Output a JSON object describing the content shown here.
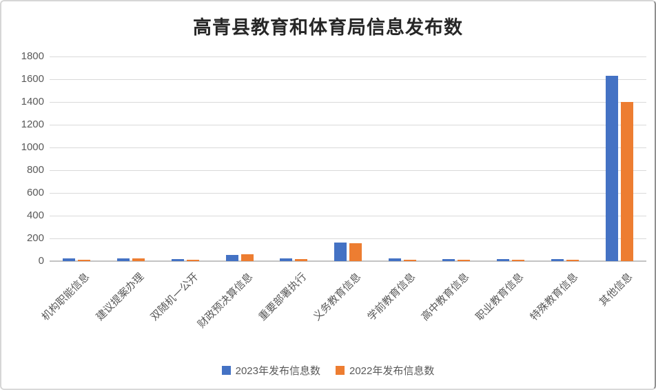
{
  "title": "高青县教育和体育局信息发布数",
  "chart_data": {
    "type": "bar",
    "title": "高青县教育和体育局信息发布数",
    "categories": [
      "机构职能信息",
      "建议提案办理",
      "双随机一公开",
      "财政预决算信息",
      "重要部署执行",
      "义务教育信息",
      "学前教育信息",
      "高中教育信息",
      "职业教育信息",
      "特殊教育信息",
      "其他信息"
    ],
    "series": [
      {
        "name": "2023年发布信息数",
        "color": "#4472C4",
        "values": [
          24,
          26,
          16,
          52,
          22,
          162,
          24,
          18,
          16,
          16,
          1630
        ]
      },
      {
        "name": "2022年发布信息数",
        "color": "#ED7D31",
        "values": [
          12,
          23,
          13,
          58,
          18,
          160,
          12,
          14,
          14,
          12,
          1400
        ]
      }
    ],
    "xlabel": "",
    "ylabel": "",
    "ylim": [
      0,
      1800
    ],
    "ytick_step": 200,
    "yticks": [
      0,
      200,
      400,
      600,
      800,
      1000,
      1200,
      1400,
      1600,
      1800
    ],
    "grid": true,
    "legend_position": "bottom",
    "colors": {
      "grid": "#d9d9d9",
      "axis_line": "#c3c3c3",
      "tick_text": "#595959",
      "title_text": "#262626",
      "background": "#ffffff"
    }
  }
}
